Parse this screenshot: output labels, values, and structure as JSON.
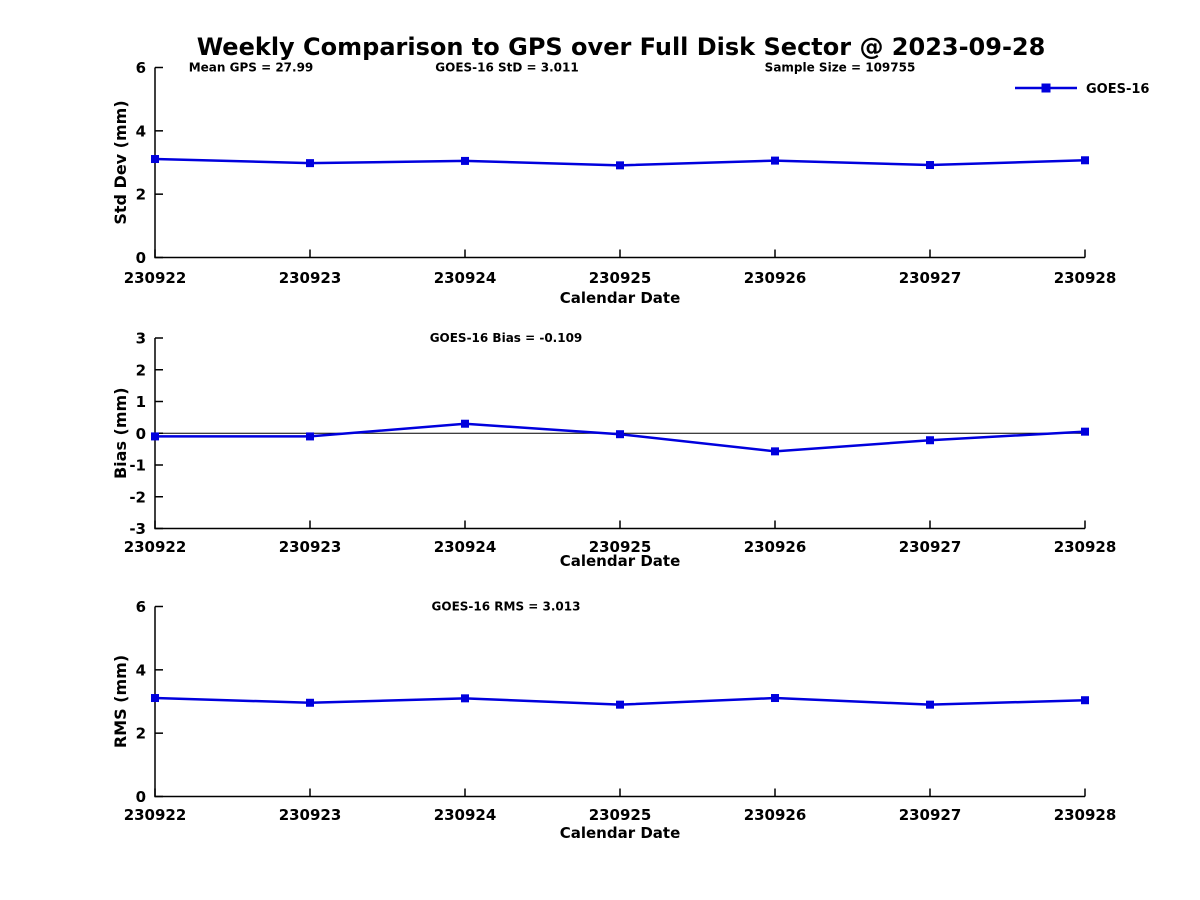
{
  "title": "Weekly Comparison to GPS over Full Disk Sector @ 2023-09-28",
  "legend": {
    "label": "GOES-16"
  },
  "colors": {
    "line": "#0000dd",
    "axis": "#000000",
    "text": "#000000",
    "background": "#ffffff",
    "zero_line": "#000000"
  },
  "chart_data": [
    {
      "type": "line",
      "title": "",
      "annotations": [
        "Mean GPS = 27.99",
        "GOES-16 StD = 3.011",
        "Sample Size = 109755"
      ],
      "xlabel": "Calendar Date",
      "ylabel": "Std Dev (mm)",
      "categories": [
        "230922",
        "230923",
        "230924",
        "230925",
        "230926",
        "230927",
        "230928"
      ],
      "series": [
        {
          "name": "GOES-16",
          "values": [
            3.11,
            2.98,
            3.05,
            2.91,
            3.06,
            2.92,
            3.07
          ]
        }
      ],
      "ylim": [
        0,
        6
      ],
      "yticks": [
        0,
        2,
        4,
        6
      ],
      "grid": false,
      "legend_position": "top-right",
      "zero_line": false
    },
    {
      "type": "line",
      "title": "",
      "annotations": [
        "GOES-16 Bias  = -0.109"
      ],
      "xlabel": "Calendar Date",
      "ylabel": "Bias (mm)",
      "categories": [
        "230922",
        "230923",
        "230924",
        "230925",
        "230926",
        "230927",
        "230928"
      ],
      "series": [
        {
          "name": "GOES-16",
          "values": [
            -0.1,
            -0.1,
            0.3,
            -0.03,
            -0.57,
            -0.22,
            0.05
          ]
        }
      ],
      "ylim": [
        -3,
        3
      ],
      "yticks": [
        3,
        2,
        1,
        0,
        -1,
        -2,
        -3
      ],
      "grid": false,
      "legend_position": "none",
      "zero_line": true
    },
    {
      "type": "line",
      "title": "",
      "annotations": [
        "GOES-16 RMS = 3.013"
      ],
      "xlabel": "Calendar Date",
      "ylabel": "RMS (mm)",
      "categories": [
        "230922",
        "230923",
        "230924",
        "230925",
        "230926",
        "230927",
        "230928"
      ],
      "series": [
        {
          "name": "GOES-16",
          "values": [
            3.11,
            2.96,
            3.1,
            2.9,
            3.11,
            2.9,
            3.04
          ]
        }
      ],
      "ylim": [
        0,
        6
      ],
      "yticks": [
        0,
        2,
        4,
        6
      ],
      "grid": false,
      "legend_position": "none",
      "zero_line": false
    }
  ]
}
